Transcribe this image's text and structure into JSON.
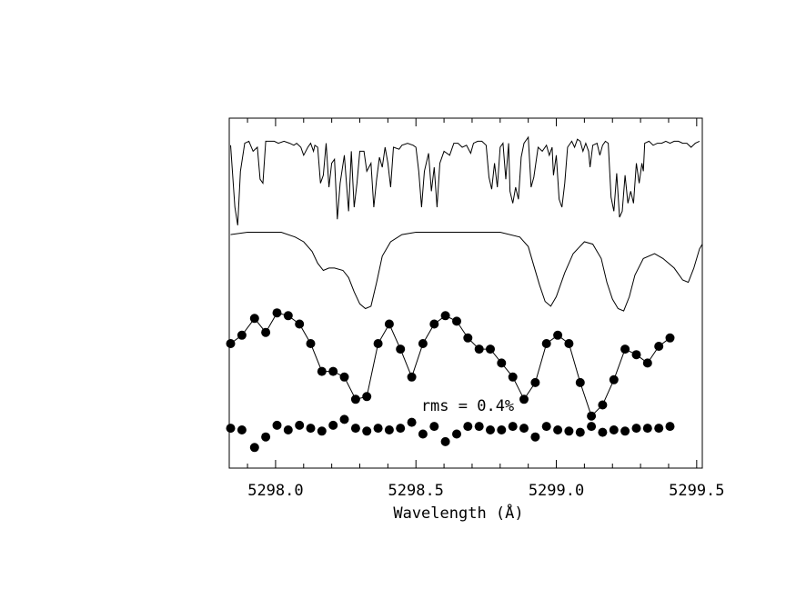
{
  "chart_data": {
    "type": "line",
    "xlabel": "Wavelength (Å)",
    "xlim": [
      5297.835,
      5299.52
    ],
    "x_ticks": [
      5298.0,
      5298.5,
      5299.0,
      5299.5
    ],
    "x_tick_labels": [
      "5298.0",
      "5298.5",
      "5299.0",
      "5299.5"
    ],
    "annotation": "rms = 0.4%",
    "grid": false,
    "legend": "none",
    "series": [
      {
        "style": "line",
        "points": [
          [
            5297.84,
            0.91
          ],
          [
            5297.855,
            0.6
          ],
          [
            5297.865,
            0.51
          ],
          [
            5297.875,
            0.78
          ],
          [
            5297.89,
            0.92
          ],
          [
            5297.905,
            0.93
          ],
          [
            5297.92,
            0.88
          ],
          [
            5297.935,
            0.9
          ],
          [
            5297.945,
            0.74
          ],
          [
            5297.955,
            0.72
          ],
          [
            5297.965,
            0.93
          ],
          [
            5297.98,
            0.93
          ],
          [
            5297.995,
            0.93
          ],
          [
            5298.01,
            0.92
          ],
          [
            5298.03,
            0.93
          ],
          [
            5298.05,
            0.92
          ],
          [
            5298.065,
            0.91
          ],
          [
            5298.075,
            0.92
          ],
          [
            5298.09,
            0.9
          ],
          [
            5298.1,
            0.86
          ],
          [
            5298.115,
            0.9
          ],
          [
            5298.125,
            0.92
          ],
          [
            5298.135,
            0.88
          ],
          [
            5298.14,
            0.91
          ],
          [
            5298.15,
            0.9
          ],
          [
            5298.16,
            0.72
          ],
          [
            5298.17,
            0.76
          ],
          [
            5298.18,
            0.92
          ],
          [
            5298.19,
            0.7
          ],
          [
            5298.2,
            0.82
          ],
          [
            5298.21,
            0.84
          ],
          [
            5298.22,
            0.54
          ],
          [
            5298.23,
            0.72
          ],
          [
            5298.245,
            0.86
          ],
          [
            5298.26,
            0.58
          ],
          [
            5298.27,
            0.88
          ],
          [
            5298.28,
            0.6
          ],
          [
            5298.29,
            0.72
          ],
          [
            5298.3,
            0.88
          ],
          [
            5298.315,
            0.88
          ],
          [
            5298.325,
            0.78
          ],
          [
            5298.34,
            0.82
          ],
          [
            5298.35,
            0.6
          ],
          [
            5298.36,
            0.74
          ],
          [
            5298.37,
            0.85
          ],
          [
            5298.38,
            0.8
          ],
          [
            5298.39,
            0.9
          ],
          [
            5298.4,
            0.82
          ],
          [
            5298.41,
            0.7
          ],
          [
            5298.42,
            0.9
          ],
          [
            5298.44,
            0.89
          ],
          [
            5298.45,
            0.91
          ],
          [
            5298.47,
            0.92
          ],
          [
            5298.49,
            0.91
          ],
          [
            5298.5,
            0.9
          ],
          [
            5298.51,
            0.78
          ],
          [
            5298.52,
            0.6
          ],
          [
            5298.53,
            0.78
          ],
          [
            5298.545,
            0.87
          ],
          [
            5298.555,
            0.68
          ],
          [
            5298.565,
            0.8
          ],
          [
            5298.575,
            0.6
          ],
          [
            5298.585,
            0.82
          ],
          [
            5298.6,
            0.88
          ],
          [
            5298.62,
            0.86
          ],
          [
            5298.635,
            0.92
          ],
          [
            5298.65,
            0.92
          ],
          [
            5298.665,
            0.9
          ],
          [
            5298.68,
            0.91
          ],
          [
            5298.695,
            0.87
          ],
          [
            5298.705,
            0.92
          ],
          [
            5298.72,
            0.93
          ],
          [
            5298.735,
            0.93
          ],
          [
            5298.75,
            0.91
          ],
          [
            5298.76,
            0.75
          ],
          [
            5298.77,
            0.69
          ],
          [
            5298.78,
            0.82
          ],
          [
            5298.79,
            0.7
          ],
          [
            5298.8,
            0.9
          ],
          [
            5298.81,
            0.92
          ],
          [
            5298.82,
            0.74
          ],
          [
            5298.83,
            0.92
          ],
          [
            5298.835,
            0.68
          ],
          [
            5298.845,
            0.62
          ],
          [
            5298.855,
            0.7
          ],
          [
            5298.865,
            0.64
          ],
          [
            5298.875,
            0.85
          ],
          [
            5298.885,
            0.92
          ],
          [
            5298.9,
            0.95
          ],
          [
            5298.91,
            0.7
          ],
          [
            5298.92,
            0.75
          ],
          [
            5298.935,
            0.9
          ],
          [
            5298.95,
            0.88
          ],
          [
            5298.965,
            0.91
          ],
          [
            5298.975,
            0.86
          ],
          [
            5298.985,
            0.9
          ],
          [
            5298.99,
            0.76
          ],
          [
            5299.0,
            0.86
          ],
          [
            5299.01,
            0.64
          ],
          [
            5299.02,
            0.6
          ],
          [
            5299.03,
            0.72
          ],
          [
            5299.04,
            0.9
          ],
          [
            5299.055,
            0.93
          ],
          [
            5299.065,
            0.9
          ],
          [
            5299.075,
            0.94
          ],
          [
            5299.085,
            0.93
          ],
          [
            5299.095,
            0.88
          ],
          [
            5299.105,
            0.92
          ],
          [
            5299.115,
            0.88
          ],
          [
            5299.12,
            0.8
          ],
          [
            5299.13,
            0.91
          ],
          [
            5299.145,
            0.92
          ],
          [
            5299.155,
            0.86
          ],
          [
            5299.165,
            0.91
          ],
          [
            5299.175,
            0.93
          ],
          [
            5299.185,
            0.92
          ],
          [
            5299.195,
            0.65
          ],
          [
            5299.205,
            0.58
          ],
          [
            5299.215,
            0.77
          ],
          [
            5299.225,
            0.55
          ],
          [
            5299.235,
            0.58
          ],
          [
            5299.245,
            0.76
          ],
          [
            5299.255,
            0.62
          ],
          [
            5299.265,
            0.68
          ],
          [
            5299.275,
            0.62
          ],
          [
            5299.285,
            0.82
          ],
          [
            5299.295,
            0.72
          ],
          [
            5299.305,
            0.82
          ],
          [
            5299.31,
            0.78
          ],
          [
            5299.315,
            0.92
          ],
          [
            5299.33,
            0.93
          ],
          [
            5299.345,
            0.91
          ],
          [
            5299.36,
            0.92
          ],
          [
            5299.375,
            0.92
          ],
          [
            5299.39,
            0.93
          ],
          [
            5299.405,
            0.92
          ],
          [
            5299.42,
            0.93
          ],
          [
            5299.435,
            0.93
          ],
          [
            5299.45,
            0.92
          ],
          [
            5299.465,
            0.92
          ],
          [
            5299.48,
            0.9
          ],
          [
            5299.495,
            0.92
          ],
          [
            5299.51,
            0.93
          ]
        ]
      },
      {
        "style": "line",
        "points": [
          [
            5297.84,
            0.5
          ],
          [
            5297.9,
            0.51
          ],
          [
            5297.96,
            0.51
          ],
          [
            5298.02,
            0.51
          ],
          [
            5298.07,
            0.49
          ],
          [
            5298.1,
            0.47
          ],
          [
            5298.13,
            0.43
          ],
          [
            5298.15,
            0.38
          ],
          [
            5298.17,
            0.35
          ],
          [
            5298.19,
            0.36
          ],
          [
            5298.21,
            0.36
          ],
          [
            5298.24,
            0.35
          ],
          [
            5298.26,
            0.32
          ],
          [
            5298.28,
            0.26
          ],
          [
            5298.3,
            0.21
          ],
          [
            5298.32,
            0.19
          ],
          [
            5298.34,
            0.2
          ],
          [
            5298.36,
            0.3
          ],
          [
            5298.38,
            0.41
          ],
          [
            5298.41,
            0.47
          ],
          [
            5298.45,
            0.5
          ],
          [
            5298.5,
            0.51
          ],
          [
            5298.6,
            0.51
          ],
          [
            5298.7,
            0.51
          ],
          [
            5298.8,
            0.51
          ],
          [
            5298.87,
            0.49
          ],
          [
            5298.9,
            0.45
          ],
          [
            5298.92,
            0.37
          ],
          [
            5298.94,
            0.29
          ],
          [
            5298.96,
            0.22
          ],
          [
            5298.98,
            0.2
          ],
          [
            5299.0,
            0.24
          ],
          [
            5299.03,
            0.34
          ],
          [
            5299.06,
            0.42
          ],
          [
            5299.1,
            0.47
          ],
          [
            5299.13,
            0.46
          ],
          [
            5299.16,
            0.4
          ],
          [
            5299.18,
            0.3
          ],
          [
            5299.2,
            0.23
          ],
          [
            5299.22,
            0.19
          ],
          [
            5299.24,
            0.18
          ],
          [
            5299.26,
            0.24
          ],
          [
            5299.28,
            0.33
          ],
          [
            5299.31,
            0.4
          ],
          [
            5299.35,
            0.42
          ],
          [
            5299.38,
            0.4
          ],
          [
            5299.42,
            0.36
          ],
          [
            5299.45,
            0.31
          ],
          [
            5299.47,
            0.3
          ],
          [
            5299.49,
            0.36
          ],
          [
            5299.51,
            0.44
          ],
          [
            5299.52,
            0.46
          ]
        ]
      },
      {
        "style": "line-markers",
        "points": [
          [
            5297.84,
            0.15
          ],
          [
            5297.88,
            0.165
          ],
          [
            5297.925,
            0.195
          ],
          [
            5297.965,
            0.17
          ],
          [
            5298.005,
            0.205
          ],
          [
            5298.045,
            0.2
          ],
          [
            5298.085,
            0.185
          ],
          [
            5298.125,
            0.15
          ],
          [
            5298.165,
            0.1
          ],
          [
            5298.205,
            0.1
          ],
          [
            5298.245,
            0.09
          ],
          [
            5298.285,
            0.05
          ],
          [
            5298.325,
            0.055
          ],
          [
            5298.365,
            0.15
          ],
          [
            5298.405,
            0.185
          ],
          [
            5298.445,
            0.14
          ],
          [
            5298.485,
            0.09
          ],
          [
            5298.525,
            0.15
          ],
          [
            5298.565,
            0.185
          ],
          [
            5298.605,
            0.2
          ],
          [
            5298.645,
            0.19
          ],
          [
            5298.685,
            0.16
          ],
          [
            5298.725,
            0.14
          ],
          [
            5298.765,
            0.14
          ],
          [
            5298.805,
            0.115
          ],
          [
            5298.845,
            0.09
          ],
          [
            5298.885,
            0.05
          ],
          [
            5298.925,
            0.08
          ],
          [
            5298.965,
            0.15
          ],
          [
            5299.005,
            0.165
          ],
          [
            5299.045,
            0.15
          ],
          [
            5299.085,
            0.08
          ],
          [
            5299.125,
            0.02
          ],
          [
            5299.165,
            0.04
          ],
          [
            5299.205,
            0.085
          ],
          [
            5299.245,
            0.14
          ],
          [
            5299.285,
            0.13
          ],
          [
            5299.325,
            0.115
          ],
          [
            5299.365,
            0.145
          ],
          [
            5299.405,
            0.16
          ]
        ]
      },
      {
        "style": "markers",
        "points": [
          [
            5297.84,
            0.045
          ],
          [
            5297.88,
            0.042
          ],
          [
            5297.925,
            0.012
          ],
          [
            5297.965,
            0.03
          ],
          [
            5298.005,
            0.05
          ],
          [
            5298.045,
            0.042
          ],
          [
            5298.085,
            0.05
          ],
          [
            5298.125,
            0.045
          ],
          [
            5298.165,
            0.04
          ],
          [
            5298.205,
            0.05
          ],
          [
            5298.245,
            0.06
          ],
          [
            5298.285,
            0.045
          ],
          [
            5298.325,
            0.04
          ],
          [
            5298.365,
            0.045
          ],
          [
            5298.405,
            0.042
          ],
          [
            5298.445,
            0.045
          ],
          [
            5298.485,
            0.055
          ],
          [
            5298.525,
            0.035
          ],
          [
            5298.565,
            0.048
          ],
          [
            5298.605,
            0.022
          ],
          [
            5298.645,
            0.035
          ],
          [
            5298.685,
            0.048
          ],
          [
            5298.725,
            0.048
          ],
          [
            5298.765,
            0.042
          ],
          [
            5298.805,
            0.042
          ],
          [
            5298.845,
            0.048
          ],
          [
            5298.885,
            0.045
          ],
          [
            5298.925,
            0.03
          ],
          [
            5298.965,
            0.048
          ],
          [
            5299.005,
            0.042
          ],
          [
            5299.045,
            0.04
          ],
          [
            5299.085,
            0.038
          ],
          [
            5299.125,
            0.048
          ],
          [
            5299.165,
            0.038
          ],
          [
            5299.205,
            0.042
          ],
          [
            5299.245,
            0.04
          ],
          [
            5299.285,
            0.045
          ],
          [
            5299.325,
            0.045
          ],
          [
            5299.365,
            0.045
          ],
          [
            5299.405,
            0.048
          ]
        ]
      }
    ]
  }
}
